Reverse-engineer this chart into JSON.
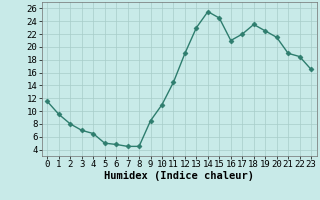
{
  "x": [
    0,
    1,
    2,
    3,
    4,
    5,
    6,
    7,
    8,
    9,
    10,
    11,
    12,
    13,
    14,
    15,
    16,
    17,
    18,
    19,
    20,
    21,
    22,
    23
  ],
  "y": [
    11.5,
    9.5,
    8.0,
    7.0,
    6.5,
    5.0,
    4.8,
    4.5,
    4.5,
    8.5,
    11.0,
    14.5,
    19.0,
    23.0,
    25.5,
    24.5,
    21.0,
    22.0,
    23.5,
    22.5,
    21.5,
    19.0,
    18.5,
    16.5
  ],
  "line_color": "#2e7d6e",
  "marker": "D",
  "marker_size": 2.5,
  "bg_color": "#c8eae8",
  "grid_color": "#a8cdc9",
  "xlabel": "Humidex (Indice chaleur)",
  "xlim": [
    -0.5,
    23.5
  ],
  "ylim": [
    3,
    27
  ],
  "yticks": [
    4,
    6,
    8,
    10,
    12,
    14,
    16,
    18,
    20,
    22,
    24,
    26
  ],
  "xticks": [
    0,
    1,
    2,
    3,
    4,
    5,
    6,
    7,
    8,
    9,
    10,
    11,
    12,
    13,
    14,
    15,
    16,
    17,
    18,
    19,
    20,
    21,
    22,
    23
  ],
  "xlabel_fontsize": 7.5,
  "tick_fontsize": 6.5,
  "line_width": 1.0
}
